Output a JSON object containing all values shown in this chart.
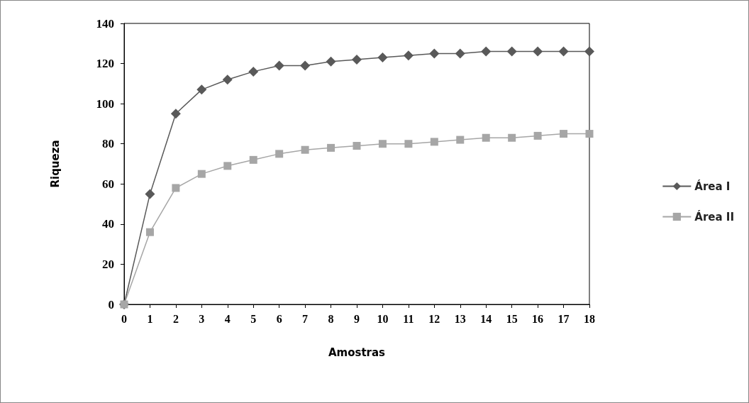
{
  "chart_data": {
    "type": "line",
    "xlabel": "Amostras",
    "ylabel": "Riqueza",
    "x": [
      0,
      1,
      2,
      3,
      4,
      5,
      6,
      7,
      8,
      9,
      10,
      11,
      12,
      13,
      14,
      15,
      16,
      17,
      18
    ],
    "series": [
      {
        "name": "Área I",
        "color": "#595959",
        "marker": "diamond",
        "values": [
          0,
          55,
          95,
          107,
          112,
          116,
          119,
          119,
          121,
          122,
          123,
          124,
          125,
          125,
          126,
          126,
          126,
          126,
          126
        ]
      },
      {
        "name": "Área II",
        "color": "#a6a6a6",
        "marker": "square",
        "values": [
          0,
          36,
          58,
          65,
          69,
          72,
          75,
          77,
          78,
          79,
          80,
          80,
          81,
          82,
          83,
          83,
          84,
          85,
          85
        ]
      }
    ],
    "xlim": [
      0,
      18
    ],
    "xticks": [
      0,
      1,
      2,
      3,
      4,
      5,
      6,
      7,
      8,
      9,
      10,
      11,
      12,
      13,
      14,
      15,
      16,
      17,
      18
    ],
    "ylim": [
      0,
      140
    ],
    "yticks": [
      0,
      20,
      40,
      60,
      80,
      100,
      120,
      140
    ],
    "grid": false,
    "legend": "right"
  }
}
